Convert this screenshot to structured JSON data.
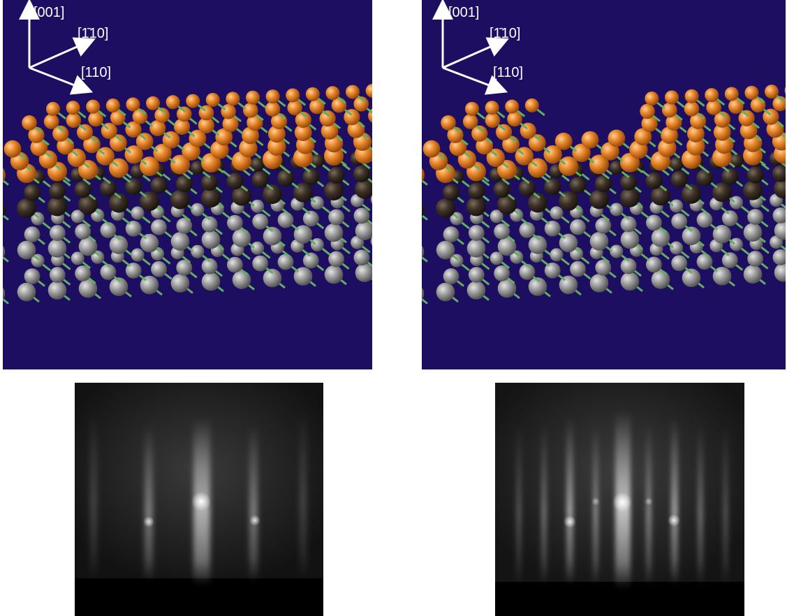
{
  "panels": {
    "left_model": {
      "axes": {
        "axis_001": "[001]",
        "axis_1bar10": "[1̄10]",
        "axis_110": "[110]"
      }
    },
    "right_model": {
      "axes": {
        "axis_001": "[001]",
        "axis_1bar10": "[1̄10]",
        "axis_110": "[110]"
      }
    }
  },
  "colors": {
    "background": "#1d0e62",
    "surface_atom": "#e07f22",
    "dark_atom": "#3a2e24",
    "substrate_atom": "#8c8c8c",
    "bond": "#5fae62",
    "arrow": "#ffffff"
  }
}
